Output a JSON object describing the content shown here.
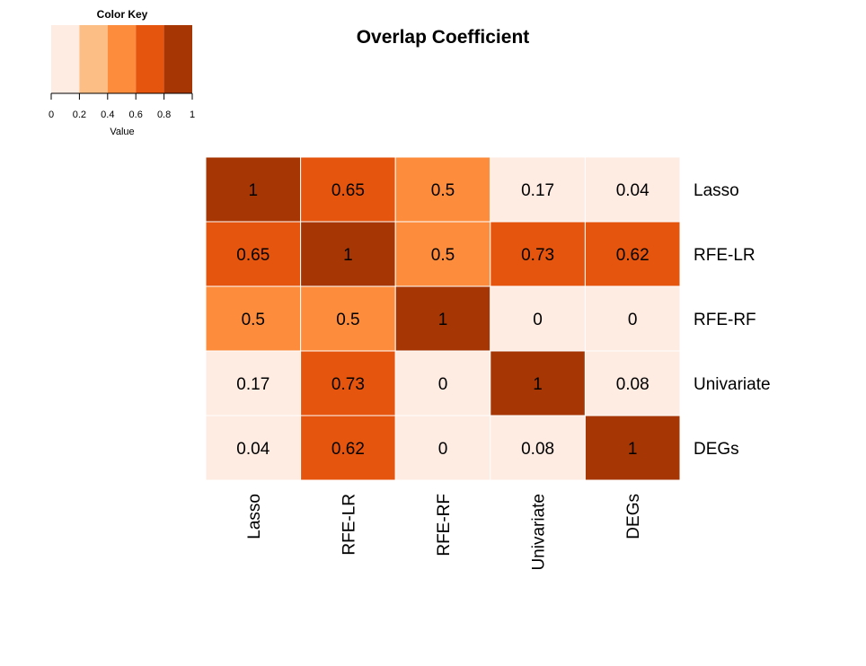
{
  "chart_data": {
    "type": "heatmap",
    "title": "Overlap Coefficient",
    "rows": [
      "Lasso",
      "RFE-LR",
      "RFE-RF",
      "Univariate",
      "DEGs"
    ],
    "columns": [
      "Lasso",
      "RFE-LR",
      "RFE-RF",
      "Univariate",
      "DEGs"
    ],
    "values": [
      [
        1,
        0.65,
        0.5,
        0.17,
        0.04
      ],
      [
        0.65,
        1,
        0.5,
        0.73,
        0.62
      ],
      [
        0.5,
        0.5,
        1,
        0,
        0
      ],
      [
        0.17,
        0.73,
        0,
        1,
        0.08
      ],
      [
        0.04,
        0.62,
        0,
        0.08,
        1
      ]
    ],
    "color_key": {
      "title": "Color Key",
      "label": "Value",
      "breaks": [
        0,
        0.2,
        0.4,
        0.6,
        0.8,
        1
      ],
      "tick_labels": [
        "0",
        "0.2",
        "0.4",
        "0.6",
        "0.8",
        "1"
      ],
      "colors": [
        "#feebe2",
        "#fdbe85",
        "#fd8d3c",
        "#e6550d",
        "#a63603"
      ]
    }
  }
}
